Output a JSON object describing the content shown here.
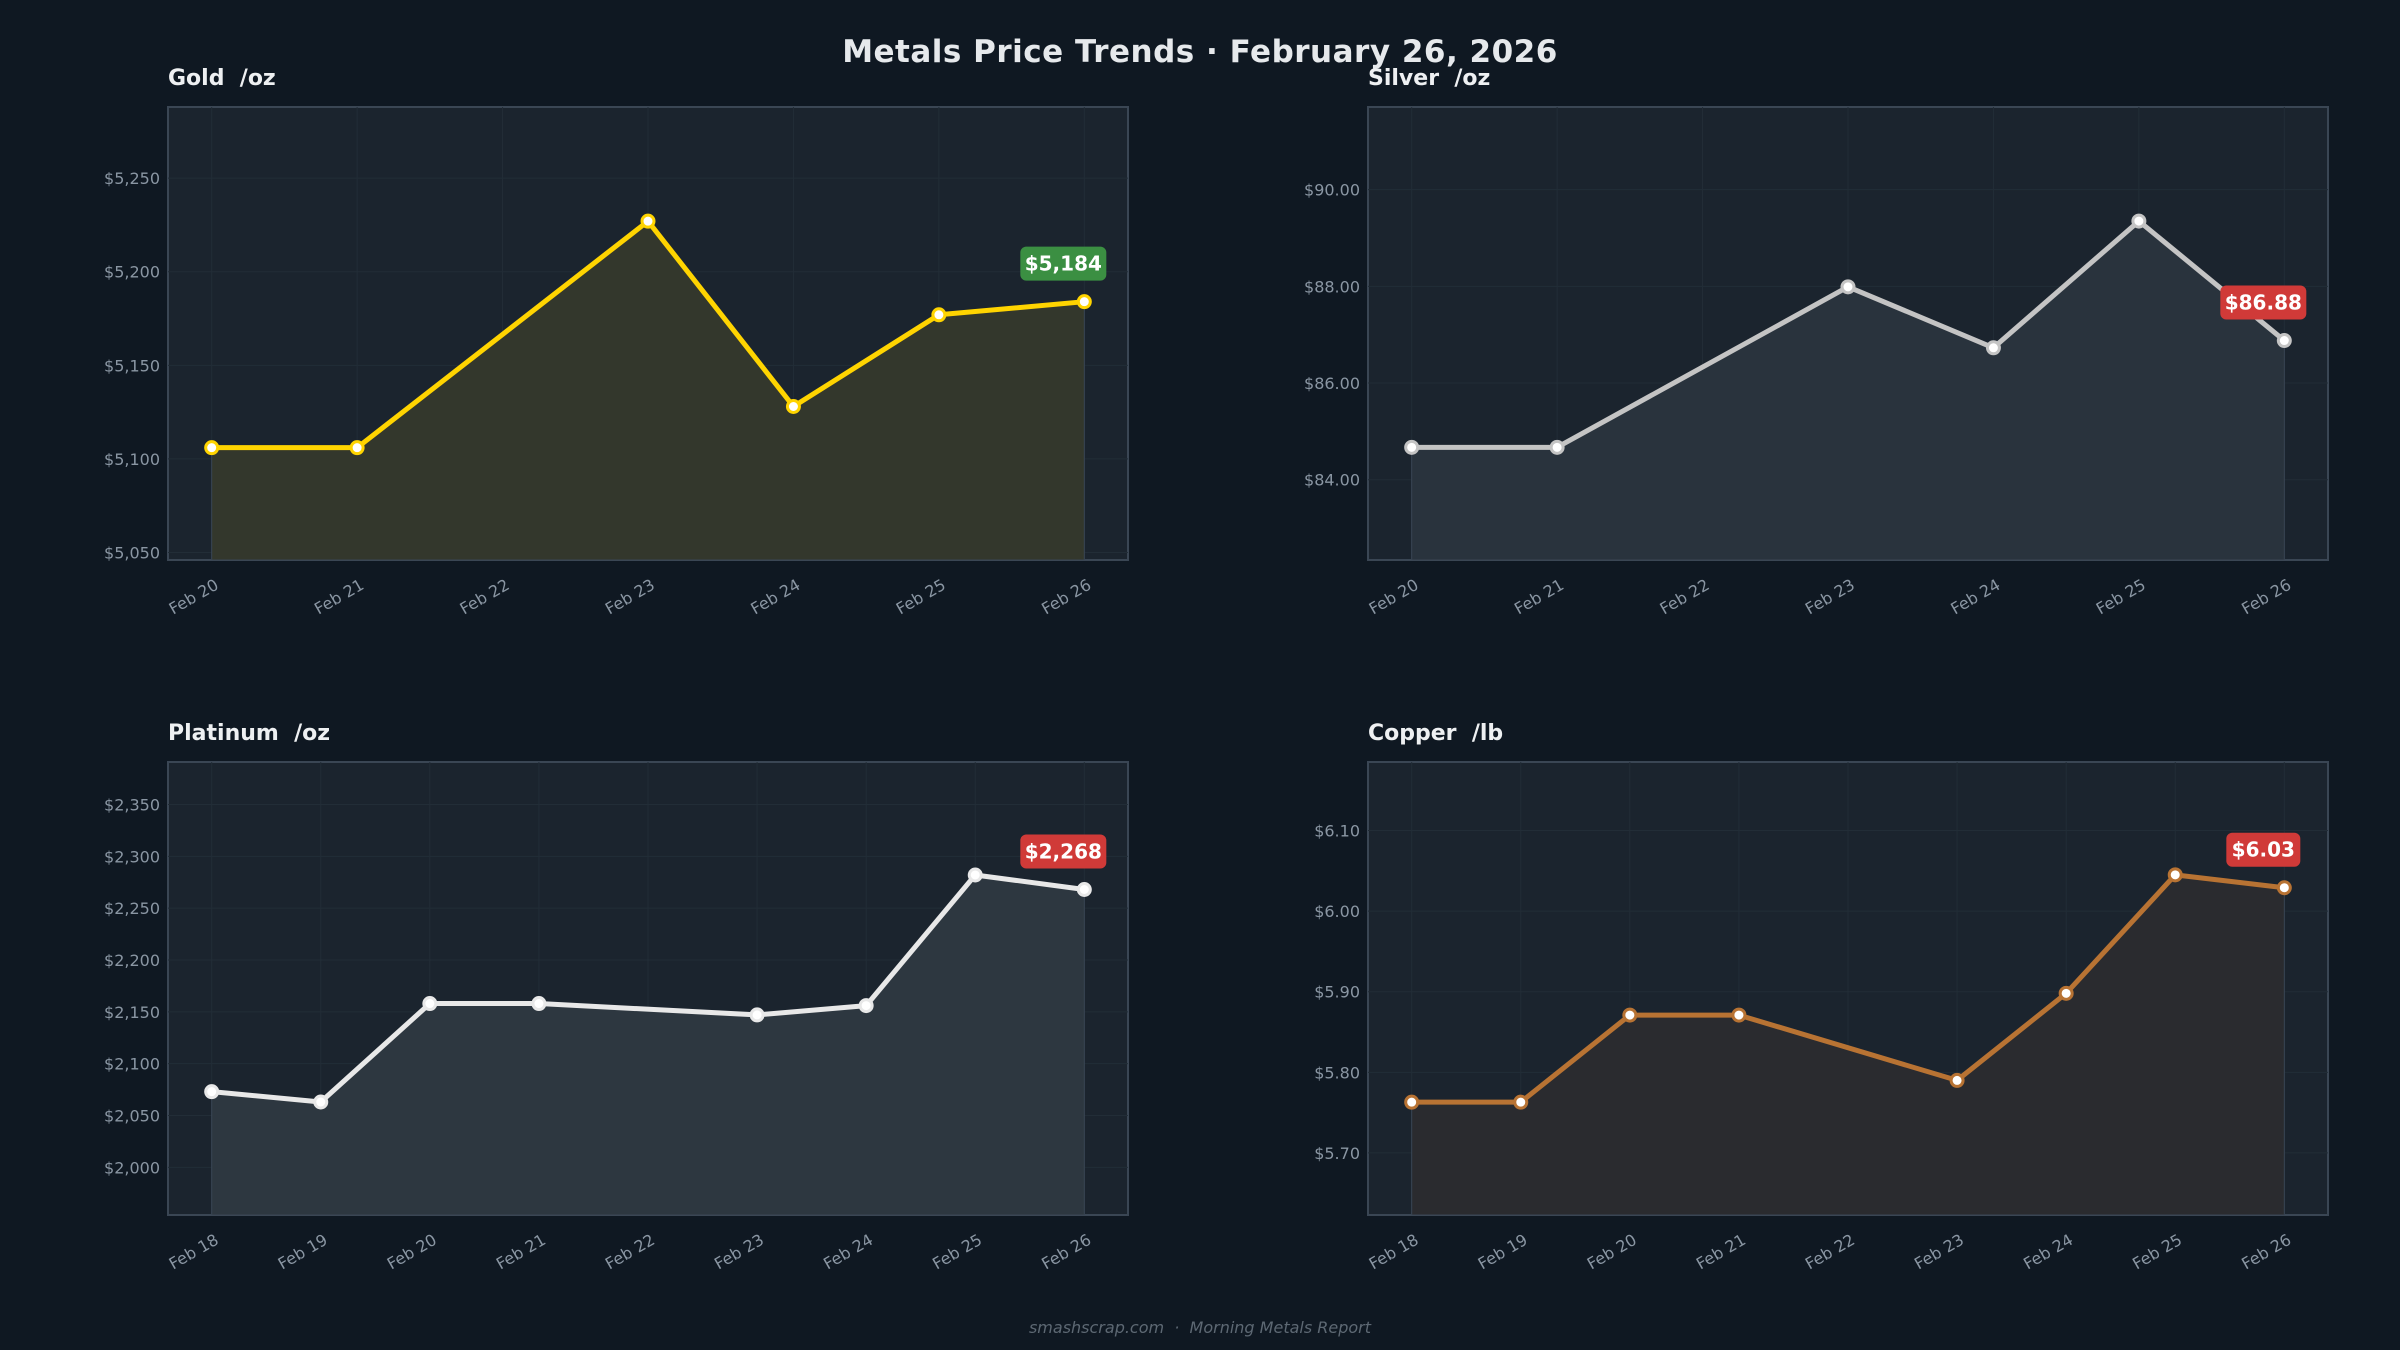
{
  "header": {
    "title": "Metals Price Trends  ·  February 26, 2026"
  },
  "footer": {
    "text": "smashscrap.com  ·  Morning Metals Report"
  },
  "chart_data": [
    {
      "type": "area",
      "title": "Gold  /oz",
      "xticks": [
        "Feb 20",
        "Feb 21",
        "Feb 22",
        "Feb 23",
        "Feb 24",
        "Feb 25",
        "Feb 26"
      ],
      "x": [
        "Feb 20",
        "Feb 21",
        "Feb 23",
        "Feb 24",
        "Feb 25",
        "Feb 26"
      ],
      "values": [
        5106,
        5106,
        5227,
        5128,
        5177,
        5184
      ],
      "yticks": [
        5050,
        5100,
        5150,
        5200,
        5250
      ],
      "ytick_labels": [
        "$5,050",
        "$5,100",
        "$5,150",
        "$5,200",
        "$5,250"
      ],
      "ylim": [
        5046,
        5288
      ],
      "grid": true,
      "line_color": "#ffd400",
      "fill_color": "#33372c",
      "marker_fill": "#ffffff",
      "badge": {
        "text": "$5,184",
        "color": "#3b8f42"
      }
    },
    {
      "type": "area",
      "title": "Silver  /oz",
      "xticks": [
        "Feb 20",
        "Feb 21",
        "Feb 22",
        "Feb 23",
        "Feb 24",
        "Feb 25",
        "Feb 26"
      ],
      "x": [
        "Feb 20",
        "Feb 21",
        "Feb 23",
        "Feb 24",
        "Feb 25",
        "Feb 26"
      ],
      "values": [
        84.67,
        84.67,
        87.99,
        86.73,
        89.35,
        86.88
      ],
      "yticks": [
        84,
        86,
        88,
        90
      ],
      "ytick_labels": [
        "$84.00",
        "$86.00",
        "$88.00",
        "$90.00"
      ],
      "ylim": [
        82.34,
        91.71
      ],
      "grid": true,
      "line_color": "#c4c4c4",
      "fill_color": "#29333d",
      "marker_fill": "#ffffff",
      "badge": {
        "text": "$86.88",
        "color": "#d03a38"
      }
    },
    {
      "type": "area",
      "title": "Platinum  /oz",
      "xticks": [
        "Feb 18",
        "Feb 19",
        "Feb 20",
        "Feb 21",
        "Feb 22",
        "Feb 23",
        "Feb 24",
        "Feb 25",
        "Feb 26"
      ],
      "x": [
        "Feb 18",
        "Feb 19",
        "Feb 20",
        "Feb 21",
        "Feb 23",
        "Feb 24",
        "Feb 25",
        "Feb 26"
      ],
      "values": [
        2073,
        2063,
        2158,
        2158,
        2147,
        2156,
        2282,
        2268
      ],
      "yticks": [
        2000,
        2050,
        2100,
        2150,
        2200,
        2250,
        2300,
        2350
      ],
      "ytick_labels": [
        "$2,000",
        "$2,050",
        "$2,100",
        "$2,150",
        "$2,200",
        "$2,250",
        "$2,300",
        "$2,350"
      ],
      "ylim": [
        1954,
        2391
      ],
      "grid": true,
      "line_color": "#e8e8e8",
      "fill_color": "#2d3740",
      "marker_fill": "#ffffff",
      "badge": {
        "text": "$2,268",
        "color": "#d03a38"
      }
    },
    {
      "type": "area",
      "title": "Copper  /lb",
      "xticks": [
        "Feb 18",
        "Feb 19",
        "Feb 20",
        "Feb 21",
        "Feb 22",
        "Feb 23",
        "Feb 24",
        "Feb 25",
        "Feb 26"
      ],
      "x": [
        "Feb 18",
        "Feb 19",
        "Feb 20",
        "Feb 21",
        "Feb 23",
        "Feb 24",
        "Feb 25",
        "Feb 26"
      ],
      "values": [
        5.763,
        5.763,
        5.871,
        5.871,
        5.79,
        5.898,
        6.045,
        6.029
      ],
      "yticks": [
        5.7,
        5.8,
        5.9,
        6.0,
        6.1
      ],
      "ytick_labels": [
        "$5.70",
        "$5.80",
        "$5.90",
        "$6.00",
        "$6.10"
      ],
      "ylim": [
        5.623,
        6.185
      ],
      "grid": true,
      "line_color": "#b87333",
      "fill_color": "#2a2b2f",
      "marker_fill": "#ffffff",
      "badge": {
        "text": "$6.03",
        "color": "#d03a38"
      }
    }
  ]
}
